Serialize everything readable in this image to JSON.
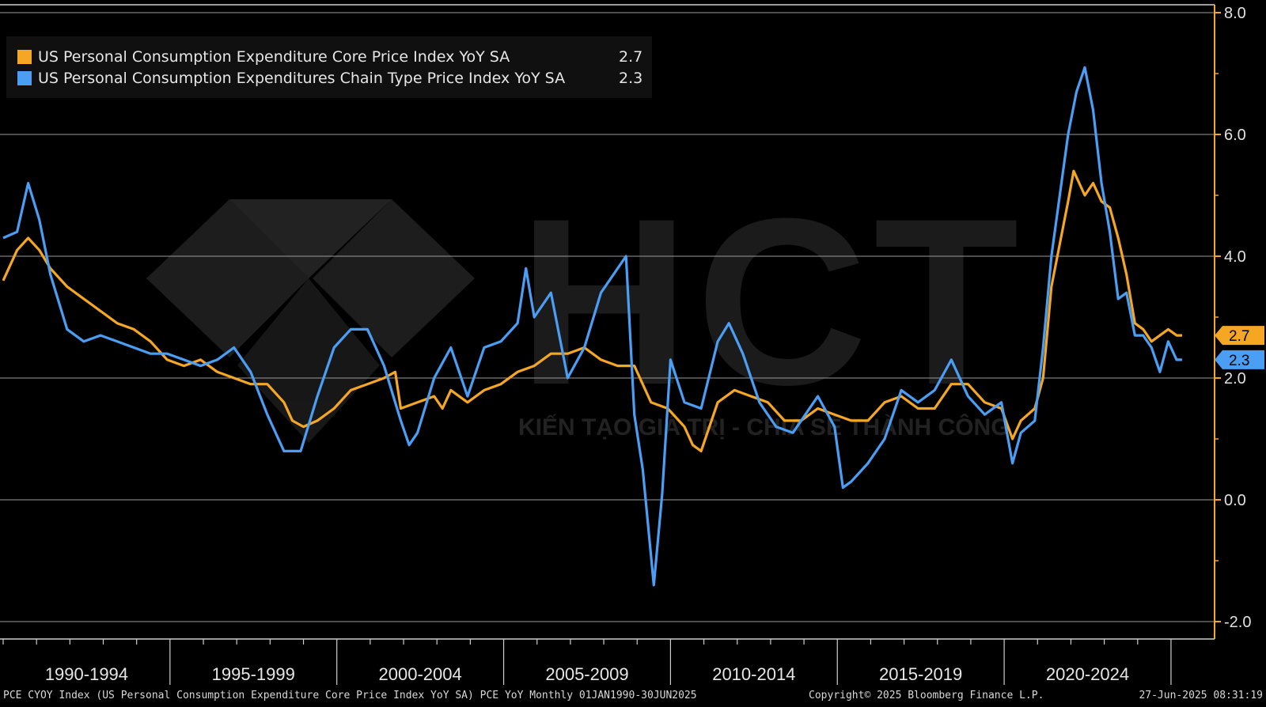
{
  "chart_data": {
    "type": "line",
    "x_range": [
      "1990-01",
      "2025-05"
    ],
    "y_axis": {
      "side": "right",
      "min": -2.0,
      "max": 8.0,
      "ticks": [
        "-2.0",
        "0.0",
        "2.0",
        "4.0",
        "6.0",
        "8.0"
      ]
    },
    "x_period_labels": [
      "1990-1994",
      "1995-1999",
      "2000-2004",
      "2005-2009",
      "2010-2014",
      "2015-2019",
      "2020-2024"
    ],
    "grid": true,
    "legend_position": "top-left",
    "series": [
      {
        "name": "US Personal Consumption Expenditure Core Price Index YoY SA",
        "last_value": "2.7",
        "color": "#f5a623",
        "points": [
          [
            "1990-01",
            3.6
          ],
          [
            "1990-06",
            4.1
          ],
          [
            "1990-10",
            4.3
          ],
          [
            "1991-02",
            4.1
          ],
          [
            "1991-06",
            3.8
          ],
          [
            "1991-12",
            3.5
          ],
          [
            "1992-06",
            3.3
          ],
          [
            "1992-12",
            3.1
          ],
          [
            "1993-06",
            2.9
          ],
          [
            "1993-12",
            2.8
          ],
          [
            "1994-06",
            2.6
          ],
          [
            "1994-12",
            2.3
          ],
          [
            "1995-06",
            2.2
          ],
          [
            "1995-12",
            2.3
          ],
          [
            "1996-06",
            2.1
          ],
          [
            "1996-12",
            2.0
          ],
          [
            "1997-06",
            1.9
          ],
          [
            "1997-12",
            1.9
          ],
          [
            "1998-06",
            1.6
          ],
          [
            "1998-09",
            1.3
          ],
          [
            "1999-01",
            1.2
          ],
          [
            "1999-06",
            1.3
          ],
          [
            "1999-12",
            1.5
          ],
          [
            "2000-06",
            1.8
          ],
          [
            "2000-12",
            1.9
          ],
          [
            "2001-06",
            2.0
          ],
          [
            "2001-10",
            2.1
          ],
          [
            "2001-12",
            1.5
          ],
          [
            "2002-06",
            1.6
          ],
          [
            "2002-12",
            1.7
          ],
          [
            "2003-03",
            1.5
          ],
          [
            "2003-06",
            1.8
          ],
          [
            "2003-12",
            1.6
          ],
          [
            "2004-06",
            1.8
          ],
          [
            "2004-12",
            1.9
          ],
          [
            "2005-06",
            2.1
          ],
          [
            "2005-12",
            2.2
          ],
          [
            "2006-06",
            2.4
          ],
          [
            "2006-12",
            2.4
          ],
          [
            "2007-06",
            2.5
          ],
          [
            "2007-12",
            2.3
          ],
          [
            "2008-06",
            2.2
          ],
          [
            "2008-12",
            2.2
          ],
          [
            "2009-06",
            1.6
          ],
          [
            "2009-12",
            1.5
          ],
          [
            "2010-06",
            1.2
          ],
          [
            "2010-09",
            0.9
          ],
          [
            "2010-12",
            0.8
          ],
          [
            "2011-06",
            1.6
          ],
          [
            "2011-12",
            1.8
          ],
          [
            "2012-06",
            1.7
          ],
          [
            "2012-12",
            1.6
          ],
          [
            "2013-06",
            1.3
          ],
          [
            "2013-12",
            1.3
          ],
          [
            "2014-06",
            1.5
          ],
          [
            "2014-12",
            1.4
          ],
          [
            "2015-06",
            1.3
          ],
          [
            "2015-12",
            1.3
          ],
          [
            "2016-06",
            1.6
          ],
          [
            "2016-12",
            1.7
          ],
          [
            "2017-06",
            1.5
          ],
          [
            "2017-12",
            1.5
          ],
          [
            "2018-06",
            1.9
          ],
          [
            "2018-12",
            1.9
          ],
          [
            "2019-06",
            1.6
          ],
          [
            "2019-12",
            1.5
          ],
          [
            "2020-04",
            1.0
          ],
          [
            "2020-07",
            1.3
          ],
          [
            "2020-12",
            1.5
          ],
          [
            "2021-03",
            2.0
          ],
          [
            "2021-06",
            3.5
          ],
          [
            "2021-12",
            4.9
          ],
          [
            "2022-02",
            5.4
          ],
          [
            "2022-06",
            5.0
          ],
          [
            "2022-09",
            5.2
          ],
          [
            "2022-12",
            4.9
          ],
          [
            "2023-03",
            4.8
          ],
          [
            "2023-06",
            4.3
          ],
          [
            "2023-09",
            3.7
          ],
          [
            "2023-12",
            2.9
          ],
          [
            "2024-03",
            2.8
          ],
          [
            "2024-06",
            2.6
          ],
          [
            "2024-09",
            2.7
          ],
          [
            "2024-12",
            2.8
          ],
          [
            "2025-03",
            2.7
          ],
          [
            "2025-05",
            2.7
          ]
        ]
      },
      {
        "name": "US Personal Consumption Expenditures Chain Type Price Index YoY SA",
        "last_value": "2.3",
        "color": "#4a9ff5",
        "points": [
          [
            "1990-01",
            4.3
          ],
          [
            "1990-06",
            4.4
          ],
          [
            "1990-10",
            5.2
          ],
          [
            "1991-02",
            4.6
          ],
          [
            "1991-06",
            3.7
          ],
          [
            "1991-12",
            2.8
          ],
          [
            "1992-06",
            2.6
          ],
          [
            "1992-12",
            2.7
          ],
          [
            "1993-06",
            2.6
          ],
          [
            "1993-12",
            2.5
          ],
          [
            "1994-06",
            2.4
          ],
          [
            "1994-12",
            2.4
          ],
          [
            "1995-06",
            2.3
          ],
          [
            "1995-12",
            2.2
          ],
          [
            "1996-06",
            2.3
          ],
          [
            "1996-12",
            2.5
          ],
          [
            "1997-06",
            2.1
          ],
          [
            "1997-12",
            1.4
          ],
          [
            "1998-06",
            0.8
          ],
          [
            "1998-12",
            0.8
          ],
          [
            "1999-06",
            1.7
          ],
          [
            "1999-12",
            2.5
          ],
          [
            "2000-06",
            2.8
          ],
          [
            "2000-12",
            2.8
          ],
          [
            "2001-06",
            2.2
          ],
          [
            "2001-12",
            1.3
          ],
          [
            "2002-03",
            0.9
          ],
          [
            "2002-06",
            1.1
          ],
          [
            "2002-12",
            2.0
          ],
          [
            "2003-06",
            2.5
          ],
          [
            "2003-12",
            1.7
          ],
          [
            "2004-06",
            2.5
          ],
          [
            "2004-12",
            2.6
          ],
          [
            "2005-06",
            2.9
          ],
          [
            "2005-09",
            3.8
          ],
          [
            "2005-12",
            3.0
          ],
          [
            "2006-06",
            3.4
          ],
          [
            "2006-12",
            2.0
          ],
          [
            "2007-06",
            2.5
          ],
          [
            "2007-12",
            3.4
          ],
          [
            "2008-06",
            3.8
          ],
          [
            "2008-09",
            4.0
          ],
          [
            "2008-12",
            1.4
          ],
          [
            "2009-03",
            0.5
          ],
          [
            "2009-07",
            -1.4
          ],
          [
            "2009-10",
            0.1
          ],
          [
            "2010-01",
            2.3
          ],
          [
            "2010-06",
            1.6
          ],
          [
            "2010-12",
            1.5
          ],
          [
            "2011-06",
            2.6
          ],
          [
            "2011-10",
            2.9
          ],
          [
            "2012-03",
            2.4
          ],
          [
            "2012-09",
            1.6
          ],
          [
            "2013-03",
            1.2
          ],
          [
            "2013-09",
            1.1
          ],
          [
            "2014-06",
            1.7
          ],
          [
            "2014-12",
            1.2
          ],
          [
            "2015-03",
            0.2
          ],
          [
            "2015-06",
            0.3
          ],
          [
            "2015-12",
            0.6
          ],
          [
            "2016-06",
            1.0
          ],
          [
            "2016-12",
            1.8
          ],
          [
            "2017-06",
            1.6
          ],
          [
            "2017-12",
            1.8
          ],
          [
            "2018-06",
            2.3
          ],
          [
            "2018-12",
            1.7
          ],
          [
            "2019-06",
            1.4
          ],
          [
            "2019-12",
            1.6
          ],
          [
            "2020-04",
            0.6
          ],
          [
            "2020-07",
            1.1
          ],
          [
            "2020-12",
            1.3
          ],
          [
            "2021-03",
            2.5
          ],
          [
            "2021-06",
            4.0
          ],
          [
            "2021-12",
            6.0
          ],
          [
            "2022-03",
            6.7
          ],
          [
            "2022-06",
            7.1
          ],
          [
            "2022-09",
            6.4
          ],
          [
            "2022-12",
            5.2
          ],
          [
            "2023-03",
            4.4
          ],
          [
            "2023-06",
            3.3
          ],
          [
            "2023-09",
            3.4
          ],
          [
            "2023-12",
            2.7
          ],
          [
            "2024-03",
            2.7
          ],
          [
            "2024-06",
            2.5
          ],
          [
            "2024-09",
            2.1
          ],
          [
            "2024-12",
            2.6
          ],
          [
            "2025-03",
            2.3
          ],
          [
            "2025-05",
            2.3
          ]
        ]
      }
    ]
  },
  "watermark": {
    "text": "HCT",
    "tagline": "KIẾN TẠO GIÁ TRỊ - CHIA SẺ THÀNH CÔNG"
  },
  "footer": {
    "left": "PCE CYOY Index (US Personal Consumption Expenditure Core Price Index YoY SA) PCE YoY  Monthly 01JAN1990-30JUN2025",
    "middle": "Copyright© 2025 Bloomberg Finance L.P.",
    "right": "27-Jun-2025 08:31:19"
  },
  "colors": {
    "background": "#000000",
    "axis": "#f5a623",
    "grid": "#9a9a9a"
  }
}
